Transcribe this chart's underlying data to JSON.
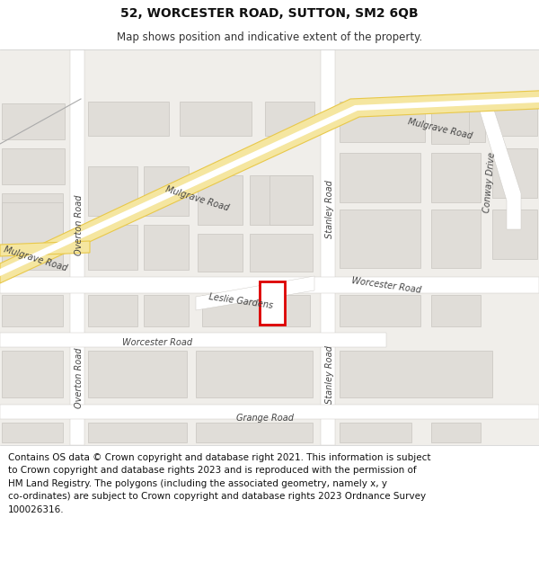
{
  "title": "52, WORCESTER ROAD, SUTTON, SM2 6QB",
  "subtitle": "Map shows position and indicative extent of the property.",
  "footer_text": "Contains OS data © Crown copyright and database right 2021. This information is subject\nto Crown copyright and database rights 2023 and is reproduced with the permission of\nHM Land Registry. The polygons (including the associated geometry, namely x, y\nco-ordinates) are subject to Crown copyright and database rights 2023 Ordnance Survey\n100026316.",
  "map_bg": "#f0eeea",
  "road_fill": "#ffffff",
  "road_yellow_fill": "#f5e6a0",
  "road_yellow_stroke": "#e8c84a",
  "block_fill": "#e0ddd8",
  "block_stroke": "#c8c5c0",
  "highlight_color": "#dd0000",
  "text_color": "#555555",
  "header_bg": "#ffffff",
  "footer_bg": "#ffffff",
  "title_fontsize": 10,
  "subtitle_fontsize": 8.5,
  "footer_fontsize": 7.5,
  "label_fontsize": 7
}
